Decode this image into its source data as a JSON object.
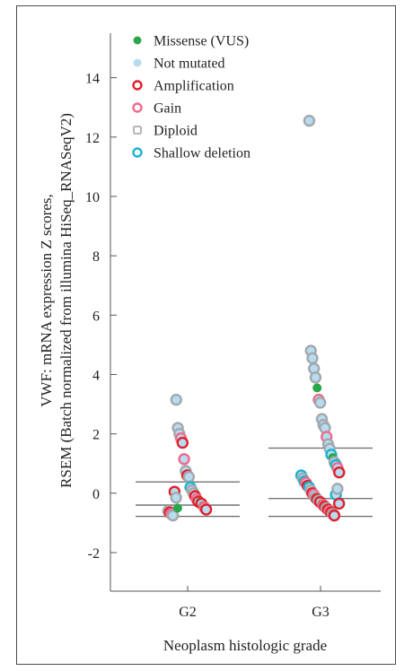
{
  "chart_data": {
    "type": "scatter",
    "title": "",
    "xlabel": "Neoplasm histologic grade",
    "ylabel_line1": "VWF: mRNA expression Z scores,",
    "ylabel_line2": "RSEM (Batch normalized from illumina HiSeq_RNASeqV2)",
    "categories": [
      "G2",
      "G3"
    ],
    "ylim": [
      -3.3,
      15.5
    ],
    "yticks": [
      14,
      12,
      10,
      8,
      6,
      4,
      2,
      0,
      -2
    ],
    "yticklabels": [
      "14",
      "12",
      "10",
      "8",
      "6",
      "4",
      "2",
      "0",
      "-2"
    ],
    "grid": false,
    "legend_position": "top-left",
    "legend": [
      {
        "label": "Missense (VUS)",
        "marker": "dot",
        "fill": "#2ca64a",
        "stroke": "#2ca64a"
      },
      {
        "label": "Not mutated",
        "marker": "dot",
        "fill": "#b7dcf0",
        "stroke": "#b7dcf0"
      },
      {
        "label": "Amplification",
        "marker": "ring",
        "fill": "#ffffff",
        "stroke": "#e0202a"
      },
      {
        "label": "Gain",
        "marker": "ring",
        "fill": "#ffffff",
        "stroke": "#ef6b8c"
      },
      {
        "label": "Diploid",
        "marker": "square",
        "fill": "#ffffff",
        "stroke": "#9e9e9e"
      },
      {
        "label": "Shallow deletion",
        "marker": "ring",
        "fill": "#ffffff",
        "stroke": "#1bb3cf"
      }
    ],
    "styles": {
      "missense": {
        "fill": "#2ca64a",
        "stroke": "#2ca64a"
      },
      "amp": {
        "fill": "#b7dcf0",
        "stroke": "#e0202a"
      },
      "gain": {
        "fill": "#b7dcf0",
        "stroke": "#ef6b8c"
      },
      "diploid": {
        "fill": "#b7dcf0",
        "stroke": "#a3a8ae"
      },
      "shallow": {
        "fill": "#b7dcf0",
        "stroke": "#1bb3cf"
      }
    },
    "box_stats": [
      {
        "category": "G2",
        "q1": -0.78,
        "median": -0.4,
        "q3": 0.38
      },
      {
        "category": "G3",
        "q1": -0.78,
        "median": -0.18,
        "q3": 1.52
      }
    ],
    "series": [
      {
        "category": "G2",
        "points": [
          {
            "y": 3.15,
            "type": "diploid"
          },
          {
            "y": 2.2,
            "type": "diploid"
          },
          {
            "y": 2.0,
            "type": "diploid"
          },
          {
            "y": 1.85,
            "type": "gain"
          },
          {
            "y": 1.7,
            "type": "amp"
          },
          {
            "y": 1.15,
            "type": "gain"
          },
          {
            "y": 0.75,
            "type": "diploid"
          },
          {
            "y": 0.6,
            "type": "amp"
          },
          {
            "y": 0.55,
            "type": "diploid"
          },
          {
            "y": 0.2,
            "type": "shallow"
          },
          {
            "y": 0.1,
            "type": "diploid"
          },
          {
            "y": 0.0,
            "type": "diploid"
          },
          {
            "y": -0.1,
            "type": "amp"
          },
          {
            "y": -0.2,
            "type": "gain"
          },
          {
            "y": -0.28,
            "type": "amp"
          },
          {
            "y": -0.3,
            "type": "missense"
          },
          {
            "y": -0.35,
            "type": "amp"
          },
          {
            "y": -0.42,
            "type": "missense"
          },
          {
            "y": -0.48,
            "type": "gain"
          },
          {
            "y": -0.55,
            "type": "amp"
          },
          {
            "y": -0.6,
            "type": "diploid"
          },
          {
            "y": -0.65,
            "type": "amp"
          },
          {
            "y": -0.7,
            "type": "gain"
          },
          {
            "y": -0.75,
            "type": "diploid"
          },
          {
            "y": 0.05,
            "type": "amp"
          },
          {
            "y": -0.15,
            "type": "diploid"
          },
          {
            "y": -0.5,
            "type": "missense"
          }
        ]
      },
      {
        "category": "G3",
        "points": [
          {
            "y": 12.55,
            "type": "diploid"
          },
          {
            "y": 4.8,
            "type": "diploid"
          },
          {
            "y": 4.55,
            "type": "diploid"
          },
          {
            "y": 4.2,
            "type": "diploid"
          },
          {
            "y": 3.9,
            "type": "diploid"
          },
          {
            "y": 3.55,
            "type": "missense"
          },
          {
            "y": 3.15,
            "type": "gain"
          },
          {
            "y": 3.05,
            "type": "diploid"
          },
          {
            "y": 2.5,
            "type": "diploid"
          },
          {
            "y": 2.3,
            "type": "diploid"
          },
          {
            "y": 2.2,
            "type": "diploid"
          },
          {
            "y": 1.9,
            "type": "gain"
          },
          {
            "y": 1.65,
            "type": "diploid"
          },
          {
            "y": 1.5,
            "type": "diploid"
          },
          {
            "y": 1.3,
            "type": "shallow"
          },
          {
            "y": 1.2,
            "type": "missense"
          },
          {
            "y": 1.05,
            "type": "diploid"
          },
          {
            "y": 0.95,
            "type": "shallow"
          },
          {
            "y": 0.85,
            "type": "gain"
          },
          {
            "y": 0.7,
            "type": "amp"
          },
          {
            "y": 0.6,
            "type": "shallow"
          },
          {
            "y": 0.5,
            "type": "diploid"
          },
          {
            "y": 0.4,
            "type": "shallow"
          },
          {
            "y": 0.35,
            "type": "gain"
          },
          {
            "y": 0.25,
            "type": "amp"
          },
          {
            "y": 0.2,
            "type": "shallow"
          },
          {
            "y": 0.1,
            "type": "diploid"
          },
          {
            "y": 0.0,
            "type": "amp"
          },
          {
            "y": -0.05,
            "type": "gain"
          },
          {
            "y": -0.15,
            "type": "diploid"
          },
          {
            "y": -0.2,
            "type": "amp"
          },
          {
            "y": -0.25,
            "type": "diploid"
          },
          {
            "y": -0.3,
            "type": "amp"
          },
          {
            "y": -0.35,
            "type": "missense"
          },
          {
            "y": -0.4,
            "type": "gain"
          },
          {
            "y": -0.45,
            "type": "amp"
          },
          {
            "y": -0.5,
            "type": "diploid"
          },
          {
            "y": -0.55,
            "type": "amp"
          },
          {
            "y": -0.6,
            "type": "gain"
          },
          {
            "y": -0.65,
            "type": "amp"
          },
          {
            "y": -0.7,
            "type": "diploid"
          },
          {
            "y": -0.75,
            "type": "amp"
          },
          {
            "y": -0.05,
            "type": "shallow"
          },
          {
            "y": 0.15,
            "type": "diploid"
          },
          {
            "y": -0.35,
            "type": "amp"
          }
        ]
      }
    ]
  }
}
